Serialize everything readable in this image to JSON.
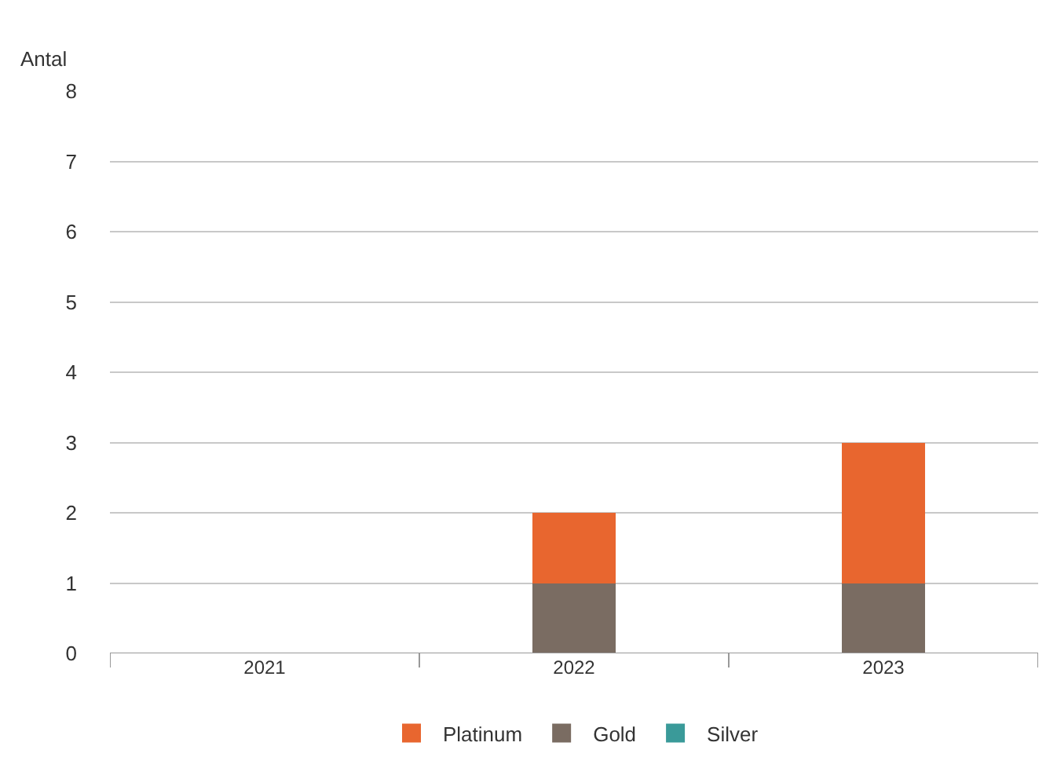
{
  "chart_data": {
    "type": "bar",
    "ylabel": "Antal",
    "categories": [
      "2021",
      "2022",
      "2023"
    ],
    "stacked": true,
    "series": [
      {
        "name": "Silver",
        "color": "#3a9a99",
        "values": [
          0,
          0,
          0
        ]
      },
      {
        "name": "Gold",
        "color": "#7a6c62",
        "values": [
          0,
          1,
          1
        ]
      },
      {
        "name": "Platinum",
        "color": "#e8662f",
        "values": [
          0,
          1,
          2
        ]
      }
    ],
    "ylim": [
      0,
      8
    ],
    "yticks": [
      0,
      1,
      2,
      3,
      4,
      5,
      6,
      7,
      8
    ],
    "grid": "y",
    "legend": "bottom"
  }
}
